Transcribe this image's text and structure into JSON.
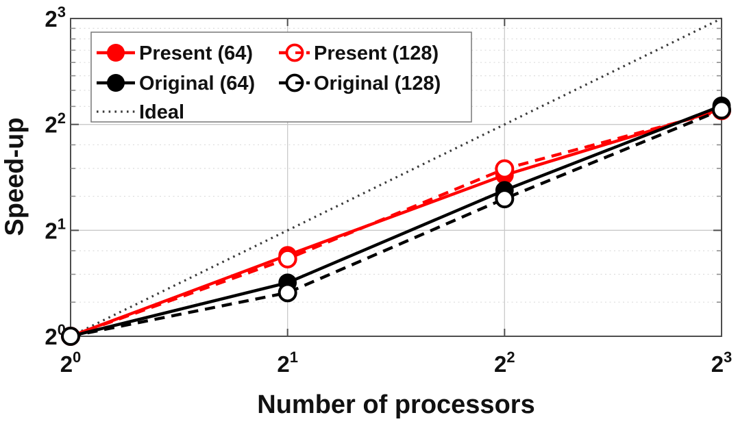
{
  "figure": {
    "xlabel": "Number of processors",
    "ylabel": "Speed-up"
  },
  "colors": {
    "present": "#ff0000",
    "original": "#000000",
    "ideal": "#3a3a3a",
    "spine": "#4d4d4d",
    "tick_major": "#4d4d4d",
    "tick_minor": "#8c8c8c",
    "grid_major": "#c9c9c9",
    "grid_minor": "#dcdcdc",
    "text": "#111111",
    "legend_border": "#777777",
    "background": "#ffffff"
  },
  "chart_data": {
    "type": "line",
    "title": "",
    "xlabel": "Number of processors",
    "ylabel": "Speed-up",
    "x_scale": "log2",
    "y_scale": "log2",
    "xlim": [
      1,
      8
    ],
    "ylim": [
      1,
      8
    ],
    "x": [
      1,
      2,
      4,
      8
    ],
    "xtick_base": "2",
    "xtick_exponents": [
      "0",
      "1",
      "2",
      "3"
    ],
    "ytick_base": "2",
    "ytick_exponents": [
      "0",
      "1",
      "2",
      "3"
    ],
    "major_gridlines_x": [
      2,
      4
    ],
    "major_gridlines_y": [
      2,
      4
    ],
    "minor_gridlines_y": [
      1.25,
      1.5,
      1.75,
      2.5,
      3,
      3.5,
      4.5,
      5,
      5.5,
      6,
      6.5,
      7,
      7.5
    ],
    "grid": "on",
    "legend_position": "top-left",
    "series": [
      {
        "name": "Ideal",
        "color": "#3a3a3a",
        "line": "dotted",
        "marker": "none",
        "values": [
          1,
          2,
          4,
          8
        ]
      },
      {
        "name": "Present (64)",
        "color": "#ff0000",
        "line": "solid",
        "marker": "filled-circle",
        "values": [
          1,
          1.7,
          2.87,
          4.42
        ]
      },
      {
        "name": "Present (128)",
        "color": "#ff0000",
        "line": "dashed",
        "marker": "open-circle",
        "values": [
          1,
          1.66,
          2.99,
          4.38
        ]
      },
      {
        "name": "Original (64)",
        "color": "#000000",
        "line": "solid",
        "marker": "filled-circle",
        "values": [
          1,
          1.42,
          2.6,
          4.52
        ]
      },
      {
        "name": "Original (128)",
        "color": "#000000",
        "line": "dashed",
        "marker": "open-circle",
        "values": [
          1,
          1.33,
          2.46,
          4.4
        ]
      }
    ],
    "legend_columns": [
      [
        "Present (64)",
        "Original (64)",
        "Ideal"
      ],
      [
        "Present (128)",
        "Original (128)"
      ]
    ]
  }
}
